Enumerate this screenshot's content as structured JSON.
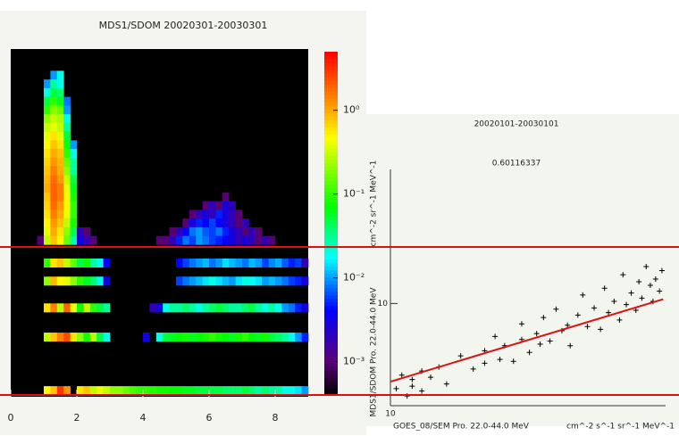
{
  "chart_data": [
    {
      "type": "heatmap",
      "title": "MDS1/SDOM 20020301-20030301",
      "xlim": [
        0,
        9
      ],
      "xticks": [
        0,
        2,
        4,
        6,
        8
      ],
      "ylim": [
        0,
        10
      ],
      "dx": 0.2,
      "dy": 0.25,
      "color_scale": "log",
      "clim": [
        0.0004,
        5
      ],
      "cticks": [
        {
          "value": 1,
          "label": "10⁰"
        },
        {
          "value": 0.1,
          "label": "10⁻¹"
        },
        {
          "value": 0.01,
          "label": "10⁻²"
        },
        {
          "value": 0.001,
          "label": "10⁻³"
        }
      ],
      "rows": [
        {
          "y": 9.25,
          "x0": 1.2,
          "values": [
            0.01,
            0.02
          ]
        },
        {
          "y": 9.0,
          "x0": 1.0,
          "values": [
            0.01,
            0.03,
            0.02
          ]
        },
        {
          "y": 8.75,
          "x0": 1.0,
          "values": [
            0.02,
            0.05,
            0.04
          ]
        },
        {
          "y": 8.5,
          "x0": 1.0,
          "values": [
            0.05,
            0.1,
            0.06,
            0.008
          ]
        },
        {
          "y": 8.25,
          "x0": 1.0,
          "values": [
            0.1,
            0.2,
            0.15,
            0.01
          ]
        },
        {
          "y": 8.0,
          "x0": 1.0,
          "values": [
            0.2,
            0.3,
            0.25,
            0.02
          ]
        },
        {
          "y": 7.75,
          "x0": 1.0,
          "values": [
            0.3,
            0.4,
            0.3,
            0.03
          ]
        },
        {
          "y": 7.5,
          "x0": 1.0,
          "values": [
            0.4,
            0.6,
            0.4,
            0.05
          ]
        },
        {
          "y": 7.25,
          "x0": 1.0,
          "values": [
            0.5,
            0.8,
            0.6,
            0.08,
            0.01
          ]
        },
        {
          "y": 7.0,
          "x0": 1.0,
          "values": [
            0.6,
            1,
            0.8,
            0.1,
            0.02
          ]
        },
        {
          "y": 6.75,
          "x0": 1.0,
          "values": [
            0.7,
            1.2,
            0.9,
            0.15,
            0.03
          ]
        },
        {
          "y": 6.5,
          "x0": 1.0,
          "values": [
            0.8,
            1.5,
            1,
            0.2,
            0.03
          ]
        },
        {
          "y": 6.25,
          "x0": 1.0,
          "values": [
            0.9,
            1.8,
            1.2,
            0.3,
            0.05
          ]
        },
        {
          "y": 6.0,
          "x0": 1.0,
          "values": [
            1,
            2,
            1.5,
            0.4,
            0.06
          ]
        },
        {
          "y": 5.75,
          "x0": 1.0,
          "values": [
            0.8,
            2,
            1.5,
            0.5,
            0.08
          ]
        },
        {
          "y": 5.5,
          "x0": 1.0,
          "values": [
            0.7,
            1.8,
            1.2,
            0.5,
            0.1
          ]
        },
        {
          "y": 5.25,
          "x0": 1.0,
          "values": [
            0.6,
            1.5,
            1,
            0.4,
            0.1
          ]
        },
        {
          "y": 5.0,
          "x0": 1.0,
          "values": [
            0.5,
            1.2,
            0.8,
            0.3,
            0.08
          ]
        },
        {
          "y": 4.75,
          "x0": 1.0,
          "values": [
            0.4,
            1,
            0.6,
            0.2,
            0.05,
            0.002,
            0.001
          ]
        },
        {
          "y": 4.5,
          "x0": 0.8,
          "values": [
            0.001,
            0.3,
            0.8,
            0.5,
            0.15,
            0.03,
            0.003,
            0.002,
            0.001
          ]
        },
        {
          "y": 5.75,
          "x0": 6.4,
          "values": [
            0.001
          ]
        },
        {
          "y": 5.5,
          "x0": 5.8,
          "values": [
            0.001,
            0.002,
            0.001,
            0.003,
            0.002
          ]
        },
        {
          "y": 5.25,
          "x0": 5.4,
          "values": [
            0.001,
            0.002,
            0.003,
            0.002,
            0.005,
            0.003,
            0.002,
            0.001
          ]
        },
        {
          "y": 5.0,
          "x0": 5.2,
          "values": [
            0.001,
            0.003,
            0.005,
            0.004,
            0.006,
            0.004,
            0.003,
            0.002,
            0.001,
            0.002
          ]
        },
        {
          "y": 4.75,
          "x0": 4.8,
          "values": [
            0.001,
            0.002,
            0.004,
            0.008,
            0.01,
            0.007,
            0.006,
            0.008,
            0.005,
            0.003,
            0.002,
            0.001,
            0.002,
            0.001
          ]
        },
        {
          "y": 4.5,
          "x0": 4.4,
          "values": [
            0.001,
            0.001,
            0.002,
            0.005,
            0.008,
            0.006,
            0.01,
            0.008,
            0.006,
            0.005,
            0.004,
            0.003,
            0.002,
            0.003,
            0.002,
            0.001,
            0.002,
            0.001
          ]
        },
        {
          "y": 3.85,
          "x0": 1.0,
          "values": [
            0.1,
            0.6,
            0.8,
            0.3,
            0.15,
            0.05,
            0.08,
            0.03,
            0.02,
            0.004,
            null,
            null,
            null,
            null,
            null,
            null,
            null,
            null,
            null,
            null,
            0.004,
            0.006,
            0.008,
            0.01,
            0.012,
            0.008,
            0.01,
            0.015,
            0.012,
            0.01,
            0.008,
            0.012,
            0.01,
            0.006,
            0.009,
            0.011,
            0.007,
            0.005,
            0.006,
            0.002
          ]
        },
        {
          "y": 3.33,
          "x0": 1.0,
          "values": [
            0.2,
            0.9,
            0.5,
            0.4,
            0.2,
            0.1,
            0.06,
            0.04,
            0.02,
            0.003,
            null,
            null,
            null,
            null,
            null,
            null,
            null,
            null,
            null,
            null,
            0.006,
            0.008,
            0.01,
            0.012,
            0.015,
            0.02,
            0.015,
            0.012,
            0.01,
            0.015,
            0.02,
            0.018,
            0.015,
            0.01,
            0.012,
            0.01,
            0.008,
            0.006,
            0.005,
            0.003
          ]
        },
        {
          "y": 2.56,
          "x0": 1.0,
          "values": [
            0.6,
            1.5,
            0.3,
            2,
            0.5,
            0.08,
            0.3,
            0.1,
            0.05,
            0.03,
            null,
            null,
            null,
            null,
            null,
            null,
            0.002,
            0.003,
            0.02,
            0.03,
            0.03,
            0.04,
            0.03,
            0.02,
            0.03,
            0.04,
            0.05,
            0.04,
            0.03,
            0.03,
            0.04,
            0.05,
            0.03,
            0.02,
            0.03,
            0.02,
            0.01,
            0.008,
            0.005,
            0.003
          ]
        },
        {
          "y": 1.72,
          "x0": 1.0,
          "values": [
            0.3,
            0.8,
            1.5,
            2.5,
            0.6,
            0.2,
            0.08,
            0.3,
            0.05,
            0.02,
            null,
            null,
            null,
            null,
            null,
            0.003,
            null,
            0.02,
            0.05,
            0.06,
            0.07,
            0.08,
            0.06,
            0.07,
            0.08,
            0.1,
            0.08,
            0.07,
            0.06,
            0.08,
            0.1,
            0.07,
            0.06,
            0.08,
            0.05,
            0.04,
            0.03,
            0.02,
            0.01,
            0.005
          ]
        },
        {
          "y": 0.18,
          "x0": 1.0,
          "values": [
            0.5,
            0.8,
            3,
            1.2,
            null,
            0.6,
            0.8,
            0.3,
            0.4,
            0.3,
            0.2,
            0.2,
            0.15,
            0.12,
            0.1,
            0.1,
            0.09,
            0.08,
            0.08,
            0.07,
            0.07,
            0.06,
            0.06,
            0.05,
            0.05,
            0.05,
            0.05,
            0.04,
            0.04,
            0.04,
            0.05,
            0.04,
            0.03,
            0.04,
            0.03,
            0.03,
            0.02,
            0.02,
            0.015,
            0.01
          ]
        }
      ]
    },
    {
      "type": "scatter",
      "title": "20020101-20030101",
      "annotation": "0.60116337",
      "y_label": "MDS1/SDOM Pro. 22.0-44.0 MeV",
      "y_unit": "cm^-2 sr^-1 MeV^-1",
      "x_label": "GOES_08/SEM Pro. 22.0-44.0 MeV",
      "x_unit": "cm^-2 s^-1 sr^-1 MeV^-1",
      "x_scale": "log",
      "y_scale": "log",
      "xlim": [
        10,
        100
      ],
      "ylim": [
        4,
        34
      ],
      "xticks": [
        10
      ],
      "yticks": [
        10
      ],
      "marker_color": "#000000",
      "fit_color": "#e01010",
      "x": [
        10.5,
        11,
        11.5,
        12,
        12,
        13,
        13,
        14,
        15,
        16,
        18,
        20,
        22,
        22,
        24,
        25,
        26,
        28,
        30,
        30,
        32,
        34,
        35,
        36,
        38,
        40,
        42,
        44,
        45,
        48,
        50,
        52,
        55,
        58,
        60,
        62,
        65,
        68,
        70,
        72,
        75,
        78,
        80,
        82,
        85,
        88,
        90,
        92,
        95,
        97
      ],
      "y": [
        4.6,
        5.2,
        4.3,
        5.0,
        4.7,
        5.4,
        4.5,
        5.1,
        5.6,
        4.8,
        6.2,
        5.5,
        6.5,
        5.8,
        7.4,
        6.0,
        6.8,
        5.9,
        7.2,
        8.3,
        6.4,
        7.6,
        6.9,
        8.8,
        7.1,
        9.5,
        7.8,
        8.2,
        6.8,
        9.0,
        10.8,
        8.1,
        9.6,
        7.9,
        11.5,
        9.2,
        10.2,
        8.6,
        13.0,
        9.9,
        11.0,
        9.4,
        12.2,
        10.5,
        14.0,
        11.8,
        10.2,
        12.5,
        11.2,
        13.5
      ],
      "fit": {
        "x": [
          10,
          98
        ],
        "y": [
          4.9,
          10.4
        ]
      }
    }
  ]
}
